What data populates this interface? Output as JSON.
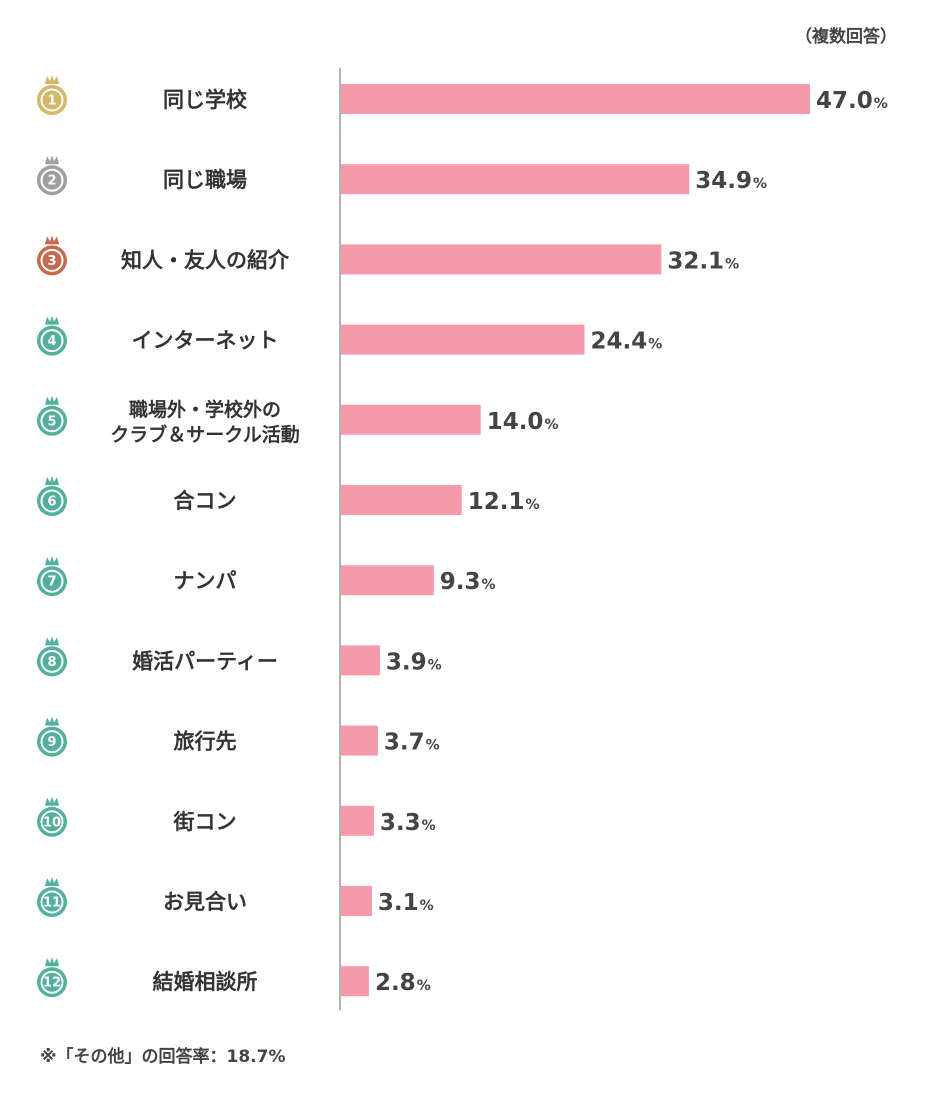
{
  "notes": {
    "top": "（複数回答）",
    "bottom": "※「その他」の回答率：18.7%"
  },
  "colors": {
    "bar": "#f49aab",
    "axis": "#999999",
    "gold": "#d4b86a",
    "silver": "#9e9e9e",
    "bronze": "#c46a4e",
    "teal": "#52b09c"
  },
  "chart_data": {
    "type": "bar",
    "orientation": "horizontal",
    "unit": "%",
    "xlim": [
      0,
      47
    ],
    "categories": [
      "同じ学校",
      "同じ職場",
      "知人・友人の紹介",
      "インターネット",
      "職場外・学校外のクラブ＆サークル活動",
      "合コン",
      "ナンパ",
      "婚活パーティー",
      "旅行先",
      "街コン",
      "お見合い",
      "結婚相談所"
    ],
    "label_lines": [
      [
        "同じ学校"
      ],
      [
        "同じ職場"
      ],
      [
        "知人・友人の紹介"
      ],
      [
        "インターネット"
      ],
      [
        "職場外・学校外の",
        "クラブ＆サークル活動"
      ],
      [
        "合コン"
      ],
      [
        "ナンパ"
      ],
      [
        "婚活パーティー"
      ],
      [
        "旅行先"
      ],
      [
        "街コン"
      ],
      [
        "お見合い"
      ],
      [
        "結婚相談所"
      ]
    ],
    "ranks": [
      "1",
      "2",
      "3",
      "4",
      "5",
      "6",
      "7",
      "8",
      "9",
      "10",
      "11",
      "12"
    ],
    "values": [
      47.0,
      34.9,
      32.1,
      24.4,
      14.0,
      12.1,
      9.3,
      3.9,
      3.7,
      3.3,
      3.1,
      2.8
    ],
    "value_labels": [
      "47.0",
      "34.9",
      "32.1",
      "24.4",
      "14.0",
      "12.1",
      "9.3",
      "3.9",
      "3.7",
      "3.3",
      "3.1",
      "2.8"
    ],
    "grid": false,
    "legend": "none"
  }
}
